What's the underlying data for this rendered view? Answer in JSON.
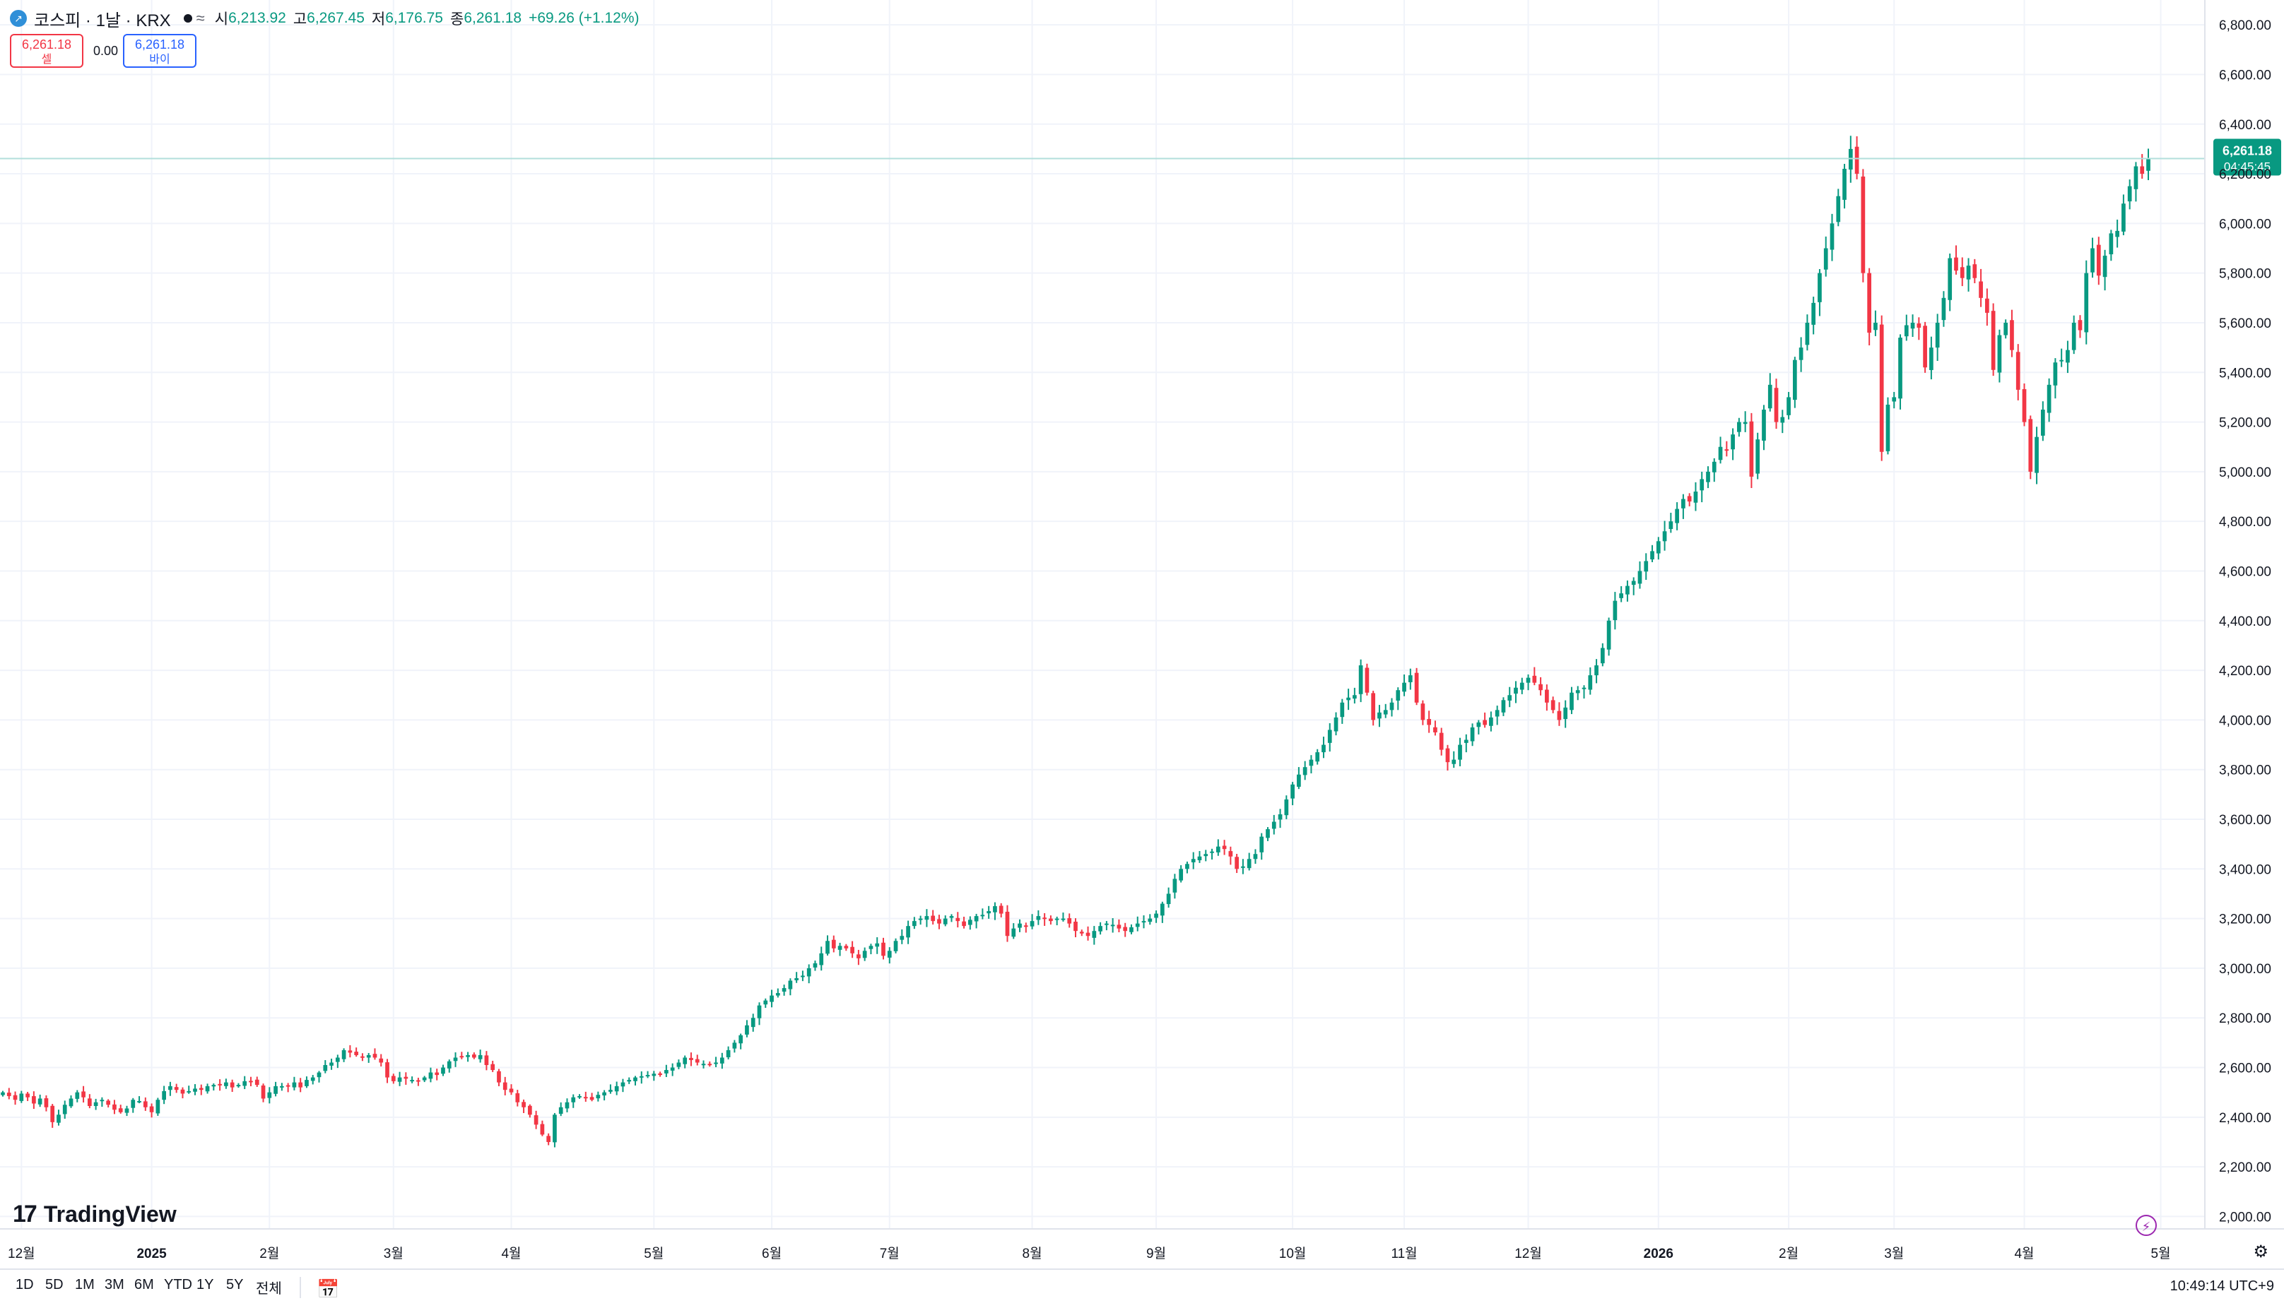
{
  "header": {
    "symbol_title": "코스피 · 1날 · KRX",
    "logo_icon": "kospi-logo-icon",
    "market_status_icon": "market-open-dot-icon",
    "compare_icon": "approx-icon",
    "open_label": "시",
    "open_value": "6,213.92",
    "high_label": "고",
    "high_value": "6,267.45",
    "low_label": "저",
    "low_value": "6,176.75",
    "close_label": "종",
    "close_value": "6,261.18",
    "change": "+69.26 (+1.12%)"
  },
  "trade": {
    "sell_price": "6,261.18",
    "sell_label": "셀",
    "spread": "0.00",
    "buy_price": "6,261.18",
    "buy_label": "바이"
  },
  "branding": {
    "name": "TradingView"
  },
  "footer": {
    "timeframes": [
      "1D",
      "5D",
      "1M",
      "3M",
      "6M",
      "YTD",
      "1Y",
      "5Y",
      "전체"
    ],
    "clock": "10:49:14 UTC+9",
    "calendar_icon": "calendar-goto-icon",
    "settings_icon": "gear-icon",
    "lightning_icon": "lightning-icon"
  },
  "colors": {
    "up": "#089981",
    "down": "#f23645",
    "grid": "#f0f3fa",
    "axis_text": "#131722"
  },
  "chart_data": {
    "type": "candlestick",
    "ylim": [
      1950,
      6900
    ],
    "y_ticks": [
      "2,000.00",
      "2,200.00",
      "2,400.00",
      "2,600.00",
      "2,800.00",
      "3,000.00",
      "3,200.00",
      "3,400.00",
      "3,600.00",
      "3,800.00",
      "4,000.00",
      "4,200.00",
      "4,400.00",
      "4,600.00",
      "4,800.00",
      "5,000.00",
      "5,200.00",
      "5,400.00",
      "5,600.00",
      "5,800.00",
      "6,000.00",
      "6,200.00",
      "6,400.00",
      "6,600.00",
      "6,800.00"
    ],
    "x_ticks": [
      {
        "label": "12월",
        "index": 3
      },
      {
        "label": "2025",
        "index": 24
      },
      {
        "label": "2월",
        "index": 43
      },
      {
        "label": "3월",
        "index": 63
      },
      {
        "label": "4월",
        "index": 82
      },
      {
        "label": "5월",
        "index": 105
      },
      {
        "label": "6월",
        "index": 124
      },
      {
        "label": "7월",
        "index": 143
      },
      {
        "label": "8월",
        "index": 166
      },
      {
        "label": "9월",
        "index": 186
      },
      {
        "label": "10월",
        "index": 208
      },
      {
        "label": "11월",
        "index": 226
      },
      {
        "label": "12월",
        "index": 246
      },
      {
        "label": "2026",
        "index": 267
      },
      {
        "label": "2월",
        "index": 288
      },
      {
        "label": "3월",
        "index": 305
      },
      {
        "label": "4월",
        "index": 326
      },
      {
        "label": "5월",
        "index": 348
      }
    ],
    "last_price_label": "6,261.18",
    "countdown_label": "04:45:45",
    "last_price": 6261.18,
    "closes": [
      2500,
      2485,
      2470,
      2495,
      2480,
      2455,
      2475,
      2440,
      2380,
      2410,
      2450,
      2475,
      2500,
      2480,
      2445,
      2460,
      2470,
      2450,
      2430,
      2420,
      2435,
      2470,
      2465,
      2440,
      2420,
      2470,
      2505,
      2525,
      2510,
      2495,
      2505,
      2515,
      2510,
      2525,
      2530,
      2530,
      2540,
      2520,
      2530,
      2545,
      2545,
      2530,
      2475,
      2500,
      2525,
      2525,
      2525,
      2540,
      2520,
      2550,
      2560,
      2580,
      2610,
      2620,
      2640,
      2670,
      2660,
      2650,
      2640,
      2650,
      2640,
      2620,
      2560,
      2545,
      2560,
      2555,
      2550,
      2545,
      2560,
      2580,
      2570,
      2600,
      2625,
      2640,
      2645,
      2650,
      2640,
      2650,
      2610,
      2590,
      2540,
      2510,
      2500,
      2460,
      2440,
      2410,
      2370,
      2330,
      2300,
      2410,
      2440,
      2460,
      2480,
      2485,
      2480,
      2470,
      2490,
      2500,
      2510,
      2525,
      2540,
      2550,
      2560,
      2565,
      2570,
      2575,
      2570,
      2590,
      2600,
      2620,
      2640,
      2630,
      2620,
      2615,
      2610,
      2620,
      2640,
      2670,
      2700,
      2730,
      2770,
      2800,
      2850,
      2870,
      2890,
      2900,
      2920,
      2950,
      2960,
      2970,
      3000,
      3020,
      3060,
      3110,
      3080,
      3090,
      3080,
      3060,
      3040,
      3070,
      3090,
      3100,
      3050,
      3070,
      3110,
      3130,
      3170,
      3190,
      3200,
      3210,
      3190,
      3180,
      3200,
      3210,
      3190,
      3170,
      3195,
      3210,
      3215,
      3230,
      3250,
      3220,
      3130,
      3160,
      3180,
      3170,
      3190,
      3210,
      3200,
      3190,
      3200,
      3200,
      3180,
      3150,
      3140,
      3130,
      3150,
      3170,
      3180,
      3175,
      3160,
      3150,
      3165,
      3180,
      3190,
      3200,
      3220,
      3260,
      3300,
      3360,
      3400,
      3420,
      3440,
      3450,
      3460,
      3470,
      3490,
      3480,
      3450,
      3400,
      3410,
      3440,
      3460,
      3530,
      3560,
      3590,
      3620,
      3680,
      3740,
      3780,
      3810,
      3840,
      3870,
      3900,
      3960,
      4010,
      4070,
      4090,
      4100,
      4220,
      4110,
      4000,
      4030,
      4040,
      4070,
      4120,
      4150,
      4180,
      4070,
      4000,
      3980,
      3950,
      3880,
      3830,
      3840,
      3900,
      3920,
      3970,
      3990,
      3980,
      4010,
      4040,
      4080,
      4100,
      4130,
      4150,
      4170,
      4150,
      4120,
      4070,
      4040,
      4000,
      4050,
      4110,
      4120,
      4130,
      4180,
      4220,
      4290,
      4400,
      4480,
      4510,
      4540,
      4560,
      4600,
      4640,
      4680,
      4720,
      4760,
      4800,
      4850,
      4890,
      4880,
      4920,
      4970,
      5000,
      5040,
      5100,
      5090,
      5150,
      5200,
      5200,
      4980,
      5130,
      5250,
      5350,
      5200,
      5220,
      5300,
      5450,
      5500,
      5600,
      5680,
      5800,
      5900,
      6000,
      6110,
      6220,
      6300,
      6200,
      5800,
      5560,
      5600,
      5080,
      5270,
      5300,
      5540,
      5590,
      5600,
      5580,
      5420,
      5500,
      5600,
      5700,
      5860,
      5810,
      5780,
      5830,
      5780,
      5700,
      5640,
      5410,
      5550,
      5600,
      5490,
      5330,
      5200,
      5000,
      5140,
      5250,
      5350,
      5440,
      5450,
      5490,
      5600,
      5570,
      5800,
      5900,
      5790,
      5870,
      5960,
      5970,
      6080,
      6150,
      6230,
      6200,
      6261.18
    ]
  }
}
